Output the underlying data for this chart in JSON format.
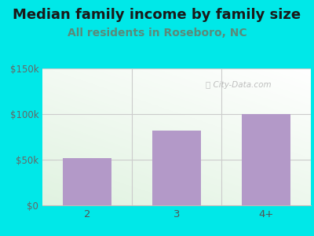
{
  "categories": [
    "2",
    "3",
    "4+"
  ],
  "values": [
    52000,
    82000,
    100000
  ],
  "bar_color": "#b399c8",
  "title": "Median family income by family size",
  "subtitle": "All residents in Roseboro, NC",
  "title_fontsize": 13,
  "subtitle_fontsize": 10,
  "subtitle_color": "#5a8a7a",
  "title_color": "#1a1a1a",
  "outer_bg_color": "#00e8e8",
  "ytick_labels": [
    "$0",
    "$50k",
    "$100k",
    "$150k"
  ],
  "ytick_values": [
    0,
    50000,
    100000,
    150000
  ],
  "ylim": [
    0,
    150000
  ],
  "ytick_color": "#666666",
  "xtick_color": "#555555",
  "watermark": "City-Data.com",
  "watermark_color": "#aaaaaa",
  "grid_color": "#cccccc",
  "axis_line_color": "#bbbbbb",
  "divider_color": "#cccccc"
}
